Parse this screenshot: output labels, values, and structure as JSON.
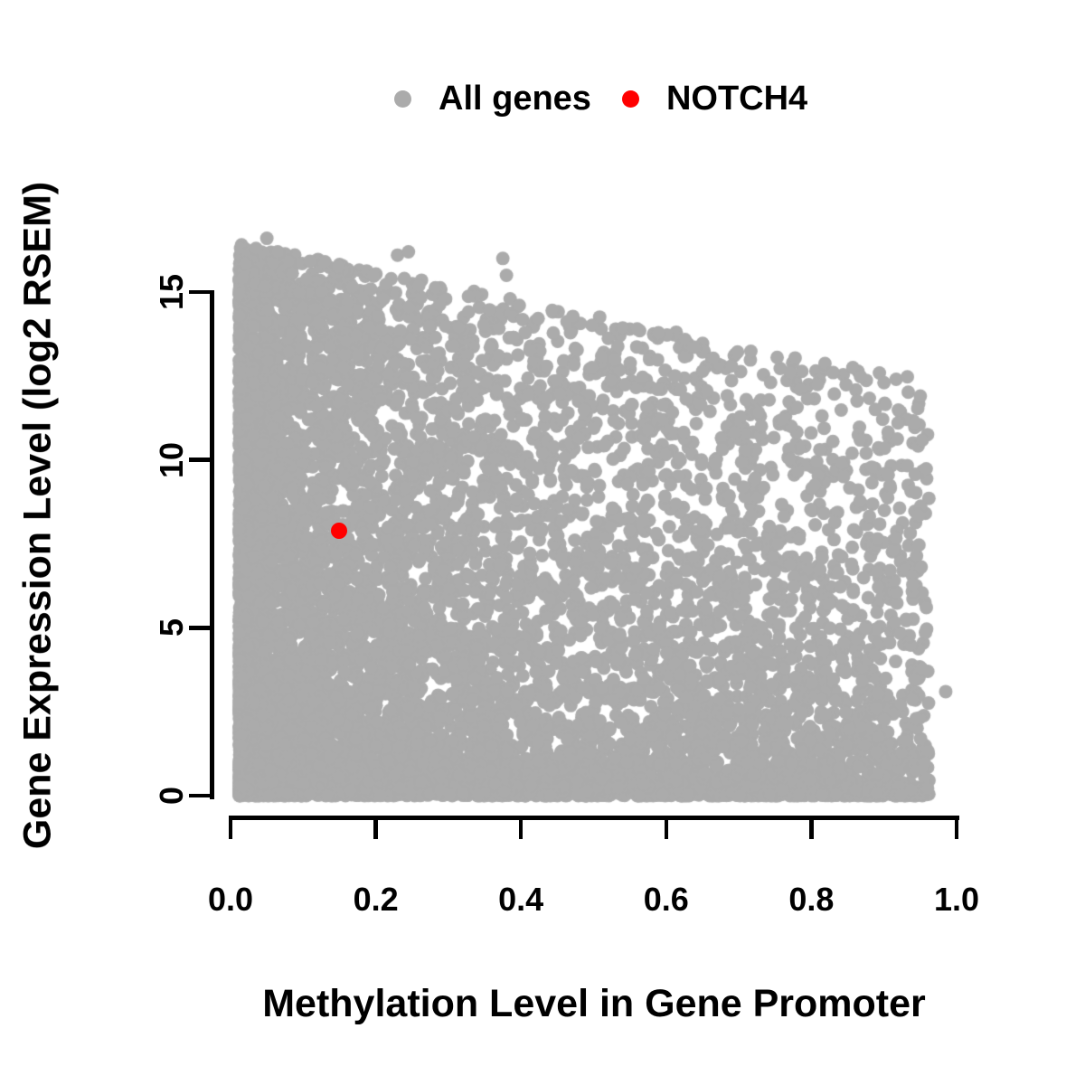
{
  "figure": {
    "background": "#FFFFFF"
  },
  "legend": {
    "items": [
      {
        "label": "All genes",
        "color": "#ABABAB"
      },
      {
        "label": "NOTCH4",
        "color": "#FF0000"
      }
    ]
  },
  "axes": {
    "x": {
      "title": "Methylation Level in Gene Promoter",
      "tick_labels": [
        "0.0",
        "0.2",
        "0.4",
        "0.6",
        "0.8",
        "1.0"
      ],
      "tick_values": [
        0.0,
        0.2,
        0.4,
        0.6,
        0.8,
        1.0
      ]
    },
    "y": {
      "title": "Gene Expression Level (log2 RSEM)",
      "tick_labels": [
        "0",
        "5",
        "10",
        "15"
      ],
      "tick_values": [
        0,
        5,
        10,
        15
      ]
    }
  },
  "chart_data": {
    "type": "scatter",
    "title": "",
    "xlabel": "Methylation Level in Gene Promoter",
    "ylabel": "Gene Expression Level (log2 RSEM)",
    "xlim": [
      0,
      1
    ],
    "ylim": [
      0,
      15
    ],
    "xticks": [
      0.0,
      0.2,
      0.4,
      0.6,
      0.8,
      1.0
    ],
    "yticks": [
      0,
      5,
      10,
      15
    ],
    "grid": false,
    "legend_position": "top-center",
    "series": [
      {
        "name": "All genes",
        "color": "#ABABAB",
        "marker": "filled-circle",
        "marker_radius_px": 7.5,
        "n_points": 8500,
        "x_range": [
          0.012,
          0.962
        ],
        "y_range": [
          0,
          16.8
        ],
        "distribution": {
          "seed": 20,
          "x_power": 2.0,
          "frontier_y_at_x0": 16.5,
          "frontier_slope": -4.3,
          "y_power_at_x0": 1.45,
          "y_power_slope": 1.15
        },
        "notable_points": [
          [
            0.985,
            3.1
          ],
          [
            0.05,
            16.6
          ],
          [
            0.035,
            16.3
          ],
          [
            0.065,
            16.2
          ],
          [
            0.23,
            16.1
          ],
          [
            0.245,
            16.2
          ],
          [
            0.375,
            16.0
          ],
          [
            0.13,
            15.9
          ],
          [
            0.38,
            15.5
          ],
          [
            0.56,
            13.9
          ],
          [
            0.69,
            12.8
          ],
          [
            0.83,
            12.6
          ],
          [
            0.9,
            12.3
          ],
          [
            0.95,
            11.9
          ]
        ]
      },
      {
        "name": "NOTCH4",
        "color": "#FF0000",
        "marker": "filled-circle",
        "marker_radius_px": 9,
        "points": [
          [
            0.149,
            7.9
          ]
        ]
      }
    ]
  }
}
